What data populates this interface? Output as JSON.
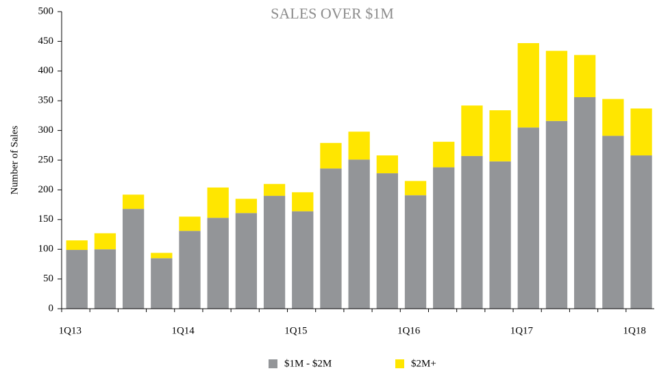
{
  "chart_data": {
    "type": "stacked_bar",
    "title": "SALES OVER $1M",
    "y_label": "Number of Sales",
    "categories": [
      "1Q13",
      null,
      null,
      null,
      "1Q14",
      null,
      null,
      null,
      "1Q15",
      null,
      null,
      null,
      "1Q16",
      null,
      null,
      null,
      "1Q17",
      null,
      null,
      null,
      "1Q18"
    ],
    "series": [
      {
        "name": "$1M - $2M",
        "color": "#939598",
        "values": [
          99,
          100,
          168,
          85,
          131,
          153,
          161,
          190,
          164,
          236,
          251,
          228,
          191,
          238,
          257,
          248,
          305,
          316,
          356,
          291,
          258
        ]
      },
      {
        "name": "$2M+",
        "color": "#ffe600",
        "values": [
          16,
          27,
          24,
          9,
          24,
          51,
          24,
          20,
          32,
          43,
          47,
          30,
          24,
          43,
          85,
          86,
          142,
          118,
          71,
          62,
          79
        ]
      }
    ],
    "ylim": [
      0,
      500
    ],
    "yticks": [
      0,
      50,
      100,
      150,
      200,
      250,
      300,
      350,
      400,
      450,
      500
    ],
    "legend": "bottom"
  }
}
